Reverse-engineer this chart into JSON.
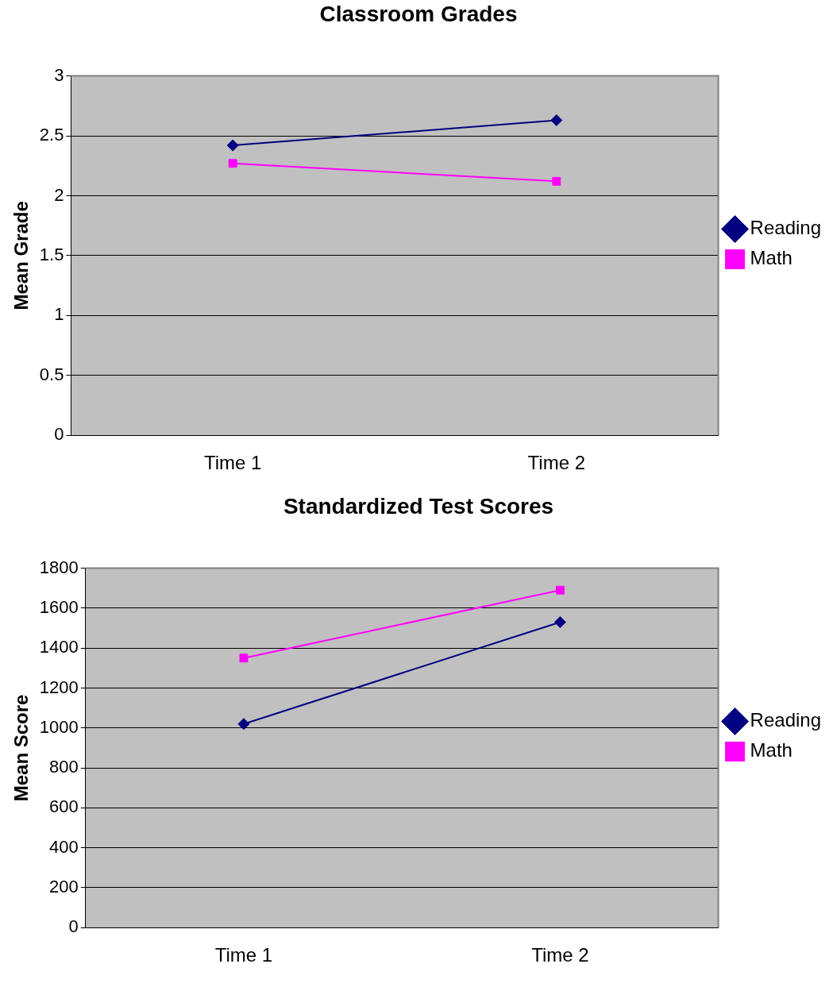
{
  "chart_data": [
    {
      "type": "line",
      "title": "Classroom Grades",
      "ylabel": "Mean Grade",
      "categories": [
        "Time 1",
        "Time 2"
      ],
      "ylim": [
        0,
        3
      ],
      "yticks": [
        0,
        0.5,
        1,
        1.5,
        2,
        2.5,
        3
      ],
      "grid": "y",
      "legend": "right",
      "series": [
        {
          "name": "Reading",
          "color": "#000080",
          "marker": "diamond",
          "values": [
            2.42,
            2.63
          ]
        },
        {
          "name": "Math",
          "color": "#ff00ff",
          "marker": "square",
          "values": [
            2.27,
            2.12
          ]
        }
      ]
    },
    {
      "type": "line",
      "title": "Standardized Test Scores",
      "ylabel": "Mean Score",
      "categories": [
        "Time 1",
        "Time 2"
      ],
      "ylim": [
        0,
        1800
      ],
      "yticks": [
        0,
        200,
        400,
        600,
        800,
        1000,
        1200,
        1400,
        1600,
        1800
      ],
      "grid": "y",
      "legend": "right",
      "series": [
        {
          "name": "Reading",
          "color": "#000080",
          "marker": "diamond",
          "values": [
            1020,
            1530
          ]
        },
        {
          "name": "Math",
          "color": "#ff00ff",
          "marker": "square",
          "values": [
            1350,
            1690
          ]
        }
      ]
    }
  ]
}
